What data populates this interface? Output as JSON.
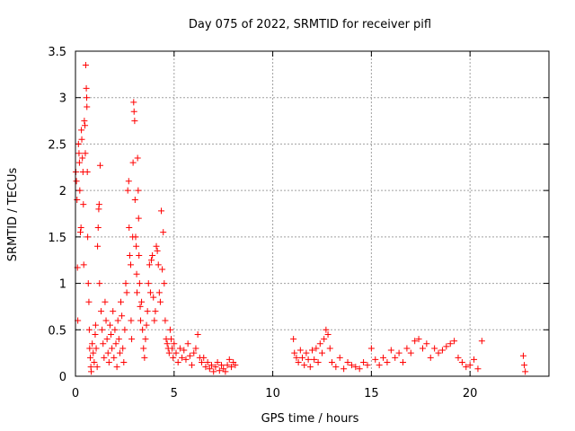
{
  "chart_data": {
    "type": "scatter",
    "title": "Day 075 of 2022, SRMTID for receiver pifl",
    "xlabel": "GPS time / hours",
    "ylabel": "SRMTID / TECUs",
    "xlim": [
      0,
      24
    ],
    "ylim": [
      0,
      3.5
    ],
    "xticks": [
      0,
      5,
      10,
      15,
      20
    ],
    "yticks": [
      0,
      0.5,
      1,
      1.5,
      2,
      2.5,
      3,
      3.5
    ],
    "xtick_labels": [
      "0",
      "5",
      "10",
      "15",
      "20"
    ],
    "ytick_labels": [
      "0",
      "0.5",
      "1",
      "1.5",
      "2",
      "2.5",
      "3",
      "3.5"
    ],
    "grid": true,
    "marker": "+",
    "series": [
      {
        "name": "SRMTID",
        "color": "#ff0000",
        "points": [
          [
            0.02,
            2.2
          ],
          [
            0.05,
            2.1
          ],
          [
            0.08,
            1.9
          ],
          [
            0.1,
            1.17
          ],
          [
            0.12,
            0.6
          ],
          [
            0.15,
            2.5
          ],
          [
            0.18,
            2.4
          ],
          [
            0.2,
            2.3
          ],
          [
            0.22,
            2.0
          ],
          [
            0.25,
            1.55
          ],
          [
            0.28,
            1.6
          ],
          [
            0.3,
            2.65
          ],
          [
            0.32,
            2.55
          ],
          [
            0.35,
            2.35
          ],
          [
            0.38,
            2.2
          ],
          [
            0.4,
            1.85
          ],
          [
            0.42,
            1.2
          ],
          [
            0.45,
            2.75
          ],
          [
            0.48,
            2.7
          ],
          [
            0.5,
            2.4
          ],
          [
            0.52,
            3.35
          ],
          [
            0.55,
            3.1
          ],
          [
            0.57,
            3.0
          ],
          [
            0.58,
            2.9
          ],
          [
            0.6,
            2.2
          ],
          [
            0.62,
            1.5
          ],
          [
            0.65,
            1.0
          ],
          [
            0.68,
            0.8
          ],
          [
            0.7,
            0.5
          ],
          [
            0.72,
            0.3
          ],
          [
            0.75,
            0.2
          ],
          [
            0.78,
            0.1
          ],
          [
            0.8,
            0.05
          ],
          [
            0.85,
            0.35
          ],
          [
            0.9,
            0.25
          ],
          [
            0.95,
            0.15
          ],
          [
            1.0,
            0.45
          ],
          [
            1.02,
            0.55
          ],
          [
            1.05,
            0.3
          ],
          [
            1.1,
            0.1
          ],
          [
            1.12,
            1.4
          ],
          [
            1.15,
            1.6
          ],
          [
            1.18,
            1.8
          ],
          [
            1.2,
            1.85
          ],
          [
            1.22,
            1.0
          ],
          [
            1.25,
            2.27
          ],
          [
            1.3,
            0.7
          ],
          [
            1.35,
            0.5
          ],
          [
            1.4,
            0.35
          ],
          [
            1.45,
            0.2
          ],
          [
            1.5,
            0.8
          ],
          [
            1.55,
            0.6
          ],
          [
            1.6,
            0.4
          ],
          [
            1.65,
            0.25
          ],
          [
            1.7,
            0.15
          ],
          [
            1.75,
            0.55
          ],
          [
            1.8,
            0.45
          ],
          [
            1.85,
            0.3
          ],
          [
            1.9,
            0.7
          ],
          [
            1.95,
            0.2
          ],
          [
            2.0,
            0.5
          ],
          [
            2.05,
            0.35
          ],
          [
            2.1,
            0.1
          ],
          [
            2.15,
            0.6
          ],
          [
            2.2,
            0.4
          ],
          [
            2.25,
            0.25
          ],
          [
            2.3,
            0.8
          ],
          [
            2.35,
            0.65
          ],
          [
            2.4,
            0.3
          ],
          [
            2.45,
            0.15
          ],
          [
            2.5,
            0.5
          ],
          [
            2.55,
            1.0
          ],
          [
            2.6,
            0.9
          ],
          [
            2.65,
            2.0
          ],
          [
            2.7,
            2.1
          ],
          [
            2.72,
            1.6
          ],
          [
            2.75,
            1.3
          ],
          [
            2.8,
            1.2
          ],
          [
            2.82,
            0.6
          ],
          [
            2.85,
            0.4
          ],
          [
            2.9,
            1.5
          ],
          [
            2.92,
            2.3
          ],
          [
            2.95,
            2.95
          ],
          [
            2.97,
            2.85
          ],
          [
            3.0,
            2.75
          ],
          [
            3.02,
            1.9
          ],
          [
            3.05,
            1.5
          ],
          [
            3.08,
            1.4
          ],
          [
            3.1,
            1.1
          ],
          [
            3.12,
            0.9
          ],
          [
            3.15,
            2.35
          ],
          [
            3.18,
            2.0
          ],
          [
            3.2,
            1.7
          ],
          [
            3.22,
            1.3
          ],
          [
            3.25,
            1.0
          ],
          [
            3.28,
            0.75
          ],
          [
            3.3,
            0.6
          ],
          [
            3.35,
            0.8
          ],
          [
            3.4,
            0.5
          ],
          [
            3.45,
            0.3
          ],
          [
            3.5,
            0.2
          ],
          [
            3.55,
            0.4
          ],
          [
            3.6,
            0.55
          ],
          [
            3.65,
            0.7
          ],
          [
            3.7,
            1.0
          ],
          [
            3.75,
            1.2
          ],
          [
            3.8,
            0.9
          ],
          [
            3.85,
            1.25
          ],
          [
            3.9,
            1.3
          ],
          [
            3.95,
            0.85
          ],
          [
            4.0,
            0.6
          ],
          [
            4.05,
            0.7
          ],
          [
            4.1,
            1.4
          ],
          [
            4.15,
            1.35
          ],
          [
            4.2,
            1.2
          ],
          [
            4.25,
            0.9
          ],
          [
            4.3,
            0.8
          ],
          [
            4.35,
            1.78
          ],
          [
            4.4,
            1.15
          ],
          [
            4.45,
            1.55
          ],
          [
            4.5,
            1.0
          ],
          [
            4.55,
            0.6
          ],
          [
            4.6,
            0.4
          ],
          [
            4.65,
            0.35
          ],
          [
            4.7,
            0.3
          ],
          [
            4.75,
            0.25
          ],
          [
            4.8,
            0.5
          ],
          [
            4.85,
            0.4
          ],
          [
            4.9,
            0.3
          ],
          [
            4.95,
            0.2
          ],
          [
            5.0,
            0.35
          ],
          [
            5.1,
            0.25
          ],
          [
            5.2,
            0.15
          ],
          [
            5.3,
            0.3
          ],
          [
            5.4,
            0.2
          ],
          [
            5.5,
            0.28
          ],
          [
            5.6,
            0.18
          ],
          [
            5.7,
            0.35
          ],
          [
            5.8,
            0.22
          ],
          [
            5.9,
            0.12
          ],
          [
            6.0,
            0.25
          ],
          [
            6.1,
            0.3
          ],
          [
            6.2,
            0.45
          ],
          [
            6.3,
            0.2
          ],
          [
            6.4,
            0.15
          ],
          [
            6.5,
            0.2
          ],
          [
            6.6,
            0.1
          ],
          [
            6.7,
            0.15
          ],
          [
            6.8,
            0.08
          ],
          [
            6.9,
            0.12
          ],
          [
            7.0,
            0.05
          ],
          [
            7.1,
            0.1
          ],
          [
            7.2,
            0.15
          ],
          [
            7.3,
            0.06
          ],
          [
            7.4,
            0.12
          ],
          [
            7.5,
            0.08
          ],
          [
            7.6,
            0.05
          ],
          [
            7.7,
            0.12
          ],
          [
            7.8,
            0.18
          ],
          [
            7.9,
            0.1
          ],
          [
            8.0,
            0.15
          ],
          [
            8.1,
            0.12
          ],
          [
            11.05,
            0.4
          ],
          [
            11.1,
            0.25
          ],
          [
            11.2,
            0.2
          ],
          [
            11.3,
            0.15
          ],
          [
            11.4,
            0.28
          ],
          [
            11.5,
            0.2
          ],
          [
            11.6,
            0.12
          ],
          [
            11.7,
            0.25
          ],
          [
            11.8,
            0.18
          ],
          [
            11.9,
            0.1
          ],
          [
            12.0,
            0.28
          ],
          [
            12.1,
            0.18
          ],
          [
            12.2,
            0.3
          ],
          [
            12.3,
            0.15
          ],
          [
            12.4,
            0.35
          ],
          [
            12.5,
            0.25
          ],
          [
            12.6,
            0.4
          ],
          [
            12.7,
            0.5
          ],
          [
            12.8,
            0.45
          ],
          [
            12.9,
            0.3
          ],
          [
            13.0,
            0.15
          ],
          [
            13.2,
            0.1
          ],
          [
            13.4,
            0.2
          ],
          [
            13.6,
            0.08
          ],
          [
            13.8,
            0.15
          ],
          [
            14.0,
            0.12
          ],
          [
            14.2,
            0.1
          ],
          [
            14.4,
            0.08
          ],
          [
            14.6,
            0.15
          ],
          [
            14.8,
            0.12
          ],
          [
            15.0,
            0.3
          ],
          [
            15.2,
            0.18
          ],
          [
            15.4,
            0.12
          ],
          [
            15.6,
            0.2
          ],
          [
            15.8,
            0.15
          ],
          [
            16.0,
            0.28
          ],
          [
            16.2,
            0.2
          ],
          [
            16.4,
            0.25
          ],
          [
            16.6,
            0.15
          ],
          [
            16.8,
            0.3
          ],
          [
            17.0,
            0.25
          ],
          [
            17.2,
            0.38
          ],
          [
            17.4,
            0.4
          ],
          [
            17.6,
            0.3
          ],
          [
            17.8,
            0.35
          ],
          [
            18.0,
            0.2
          ],
          [
            18.2,
            0.3
          ],
          [
            18.4,
            0.25
          ],
          [
            18.6,
            0.28
          ],
          [
            18.8,
            0.32
          ],
          [
            19.0,
            0.35
          ],
          [
            19.2,
            0.38
          ],
          [
            19.4,
            0.2
          ],
          [
            19.6,
            0.15
          ],
          [
            19.8,
            0.1
          ],
          [
            20.0,
            0.12
          ],
          [
            20.2,
            0.18
          ],
          [
            20.4,
            0.08
          ],
          [
            20.6,
            0.38
          ],
          [
            22.7,
            0.22
          ],
          [
            22.75,
            0.12
          ],
          [
            22.8,
            0.05
          ]
        ]
      }
    ]
  }
}
